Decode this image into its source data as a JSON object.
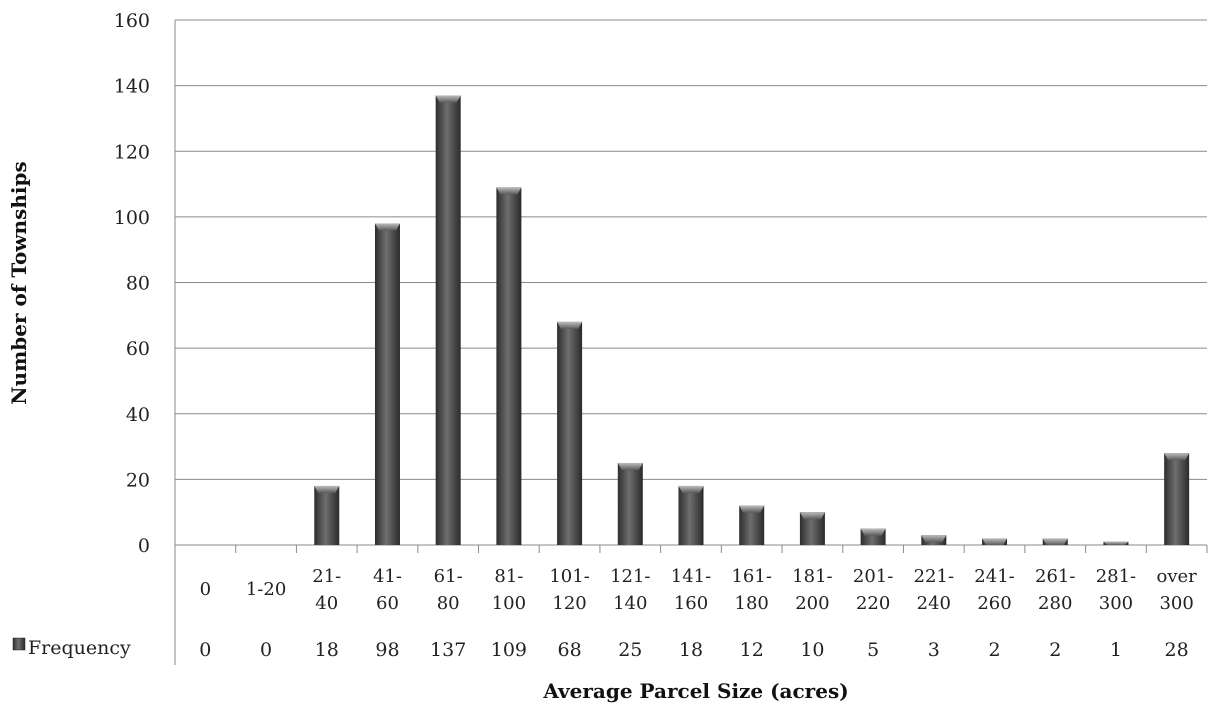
{
  "chart_data": {
    "type": "bar",
    "xlabel": "Average Parcel Size (acres)",
    "ylabel": "Number of Townships",
    "ylim": [
      0,
      160
    ],
    "yticks": [
      0,
      20,
      40,
      60,
      80,
      100,
      120,
      140,
      160
    ],
    "grid": true,
    "legend_placement": "data-table-left",
    "categories": [
      [
        "0"
      ],
      [
        "1-20"
      ],
      [
        "21-",
        "40"
      ],
      [
        "41-",
        "60"
      ],
      [
        "61-",
        "80"
      ],
      [
        "81-",
        "100"
      ],
      [
        "101-",
        "120"
      ],
      [
        "121-",
        "140"
      ],
      [
        "141-",
        "160"
      ],
      [
        "161-",
        "180"
      ],
      [
        "181-",
        "200"
      ],
      [
        "201-",
        "220"
      ],
      [
        "221-",
        "240"
      ],
      [
        "241-",
        "260"
      ],
      [
        "261-",
        "280"
      ],
      [
        "281-",
        "300"
      ],
      [
        "over",
        "300"
      ]
    ],
    "series": [
      {
        "name": "Frequency",
        "color": "#4a4a4a",
        "values": [
          0,
          0,
          18,
          98,
          137,
          109,
          68,
          25,
          18,
          12,
          10,
          5,
          3,
          2,
          2,
          1,
          28
        ]
      }
    ]
  }
}
